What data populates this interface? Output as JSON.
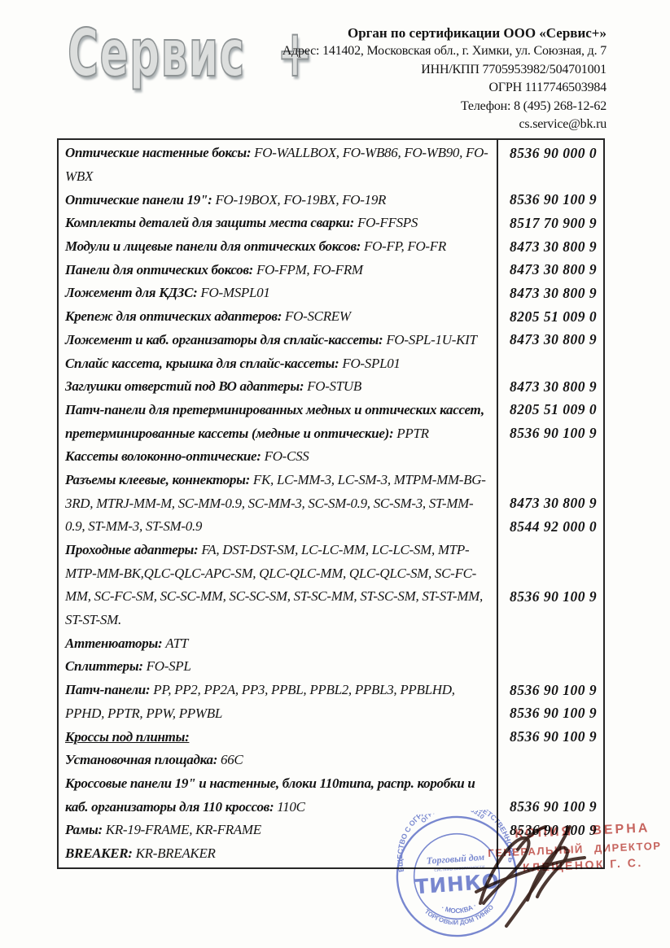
{
  "logo": {
    "text": "Сервис +"
  },
  "header": {
    "org": "Орган по сертификации ООО «Сервис+»",
    "address": "Адрес: 141402, Московская обл., г. Химки, ул. Союзная, д. 7",
    "inn_kpp": "ИНН/КПП 7705953982/504701001",
    "ogrn": "ОГРН 1117746503984",
    "phone": "Телефон: 8 (495) 268-12-62",
    "email": "cs.service@bk.ru"
  },
  "table": {
    "rows": [
      {
        "b": "Оптические настенные боксы:",
        "n": " FO-WALLBOX, FO-WB86, FO-WB90, FO-",
        "c": "8536 90 000 0"
      },
      {
        "b": "",
        "n": "WBX",
        "c": ""
      },
      {
        "b": "Оптические панели 19\":",
        "n": " FO-19BOX, FO-19BX, FO-19R",
        "c": "8536 90 100 9"
      },
      {
        "b": "Комплекты деталей для защиты места сварки:",
        "n": " FO-FFSPS",
        "c": "8517 70 900 9"
      },
      {
        "b": "Модули и лицевые панели для оптических боксов:",
        "n": " FO-FP, FO-FR",
        "c": "8473 30 800 9"
      },
      {
        "b": "Панели для оптических боксов:",
        "n": " FO-FPM, FO-FRM",
        "c": "8473 30 800 9"
      },
      {
        "b": "Ложемент для КДЗС:",
        "n": " FO-MSPL01",
        "c": "8473 30 800 9"
      },
      {
        "b": "Крепеж для оптических адаптеров:",
        "n": " FO-SCREW",
        "c": "8205 51 009 0"
      },
      {
        "b": "Ложемент и каб. организаторы для сплайс-кассеты:",
        "n": " FO-SPL-1U-KIT",
        "c": "8473 30 800 9"
      },
      {
        "b": "Сплайс кассета, крышка для сплайс-кассеты:",
        "n": " FO-SPL01",
        "c": ""
      },
      {
        "b": "Заглушки отверстий под ВО адаптеры:",
        "n": " FO-STUB",
        "c": "8473 30 800 9"
      },
      {
        "b": "Патч-панели для претерминированных медных и оптических кассет,",
        "n": "",
        "c": "8205 51 009 0"
      },
      {
        "b": "претерминированные кассеты (медные и оптические):",
        "n": " PPTR",
        "c": "8536 90 100 9"
      },
      {
        "b": "Кассеты волоконно-оптические:",
        "n": " FO-CSS",
        "c": ""
      },
      {
        "b": "Разъемы клеевые, коннекторы:",
        "n": " FK, LC-MM-3, LC-SM-3, MTPM-MM-BG-",
        "c": ""
      },
      {
        "b": "",
        "n": "3RD, MTRJ-MM-M, SC-MM-0.9, SC-MM-3, SC-SM-0.9, SC-SM-3, ST-MM-",
        "c": "8473 30 800 9"
      },
      {
        "b": "",
        "n": "0.9, ST-MM-3, ST-SM-0.9",
        "c": "8544 92 000 0"
      },
      {
        "b": "Проходные адаптеры:",
        "n": " FA, DST-DST-SM, LC-LC-MM, LC-LC-SM, MTP-",
        "c": ""
      },
      {
        "b": "",
        "n": "MTP-MM-BK,QLC-QLC-APC-SM, QLC-QLC-MM, QLC-QLC-SM, SC-FC-",
        "c": ""
      },
      {
        "b": "",
        "n": "MM, SC-FC-SM, SC-SC-MM, SC-SC-SM, ST-SC-MM, ST-SC-SM, ST-ST-MM,",
        "c": "8536 90 100 9"
      },
      {
        "b": "",
        "n": "ST-ST-SM.",
        "c": ""
      },
      {
        "b": "Аттенюаторы:",
        "n": " ATT",
        "c": ""
      },
      {
        "b": "Сплиттеры:",
        "n": " FO-SPL",
        "c": ""
      },
      {
        "b": "Патч-панели:",
        "n": " PP, PP2, PP2A, PP3, PPBL, PPBL2, PPBL3, PPBLHD,",
        "c": "8536 90 100 9"
      },
      {
        "b": "",
        "n": "PPHD, PPTR, PPW, PPWBL",
        "c": "8536 90 100 9"
      },
      {
        "b": "Кроссы под плинты:",
        "n": "",
        "c": "8536 90 100 9",
        "u": true
      },
      {
        "b": "Установочная площадка:",
        "n": " 66C",
        "c": ""
      },
      {
        "b": "Кроссовые панели 19\" и настенные, блоки 110типа, распр. коробки и",
        "n": "",
        "c": ""
      },
      {
        "b": "каб. организаторы для 110 кроссов:",
        "n": " 110C",
        "c": "8536 90 100 9"
      },
      {
        "b": "Рамы:",
        "n": " KR-19-FRAME, KR-FRAME",
        "c": "8536 90 100 9"
      },
      {
        "b": "BREAKER:",
        "n": " KR-BREAKER",
        "c": ""
      }
    ]
  },
  "stamps": {
    "round": {
      "top_arc": "ОБЩЕСТВО С ОГРАНИЧЕННОЙ ОТВЕТСТВЕННОСТЬЮ",
      "ogrn_arc": "ОГРН 1087746895310",
      "bottom_outer_arc": "ТОРГОВЫЙ ДОМ ТИНКО",
      "center_line1": "Торговый дом",
      "center_small": "СИСТЕМЫ БЕЗОПАСНОСТИ",
      "center_logo": "ТИНКО",
      "bottom_inner": "· МОСКВА ·",
      "color": "#5b6ec9"
    },
    "copy": {
      "line1": "КОПИЯ ВЕРНА",
      "line2": "ГЕНЕРАЛЬНЫЙ ДИРЕКТОР",
      "line3": "КЛЕЩЕНОК Г. С.",
      "color": "#c2544d"
    }
  }
}
